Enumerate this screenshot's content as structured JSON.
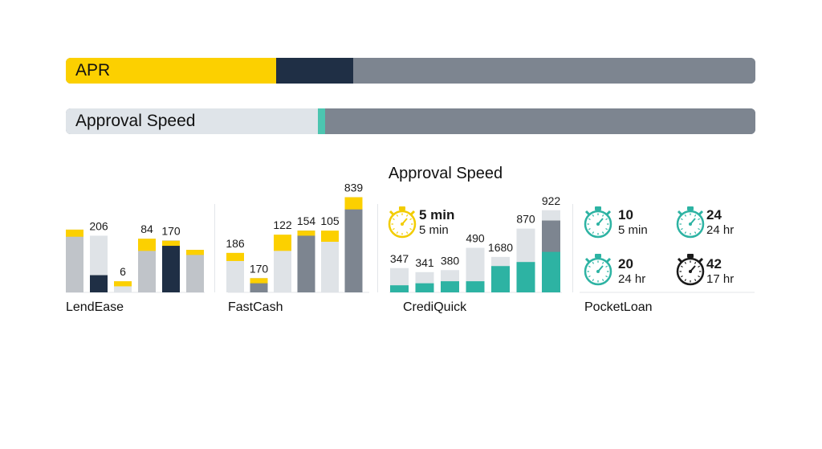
{
  "bars": {
    "apr": {
      "label": "APR",
      "segments": [
        {
          "share": 0.305,
          "color": "#fcd000"
        },
        {
          "share": 0.112,
          "color": "#1f2f45"
        },
        {
          "share": 0.583,
          "color": "#7d8590"
        }
      ]
    },
    "approval_speed": {
      "label": "Approval Speed",
      "segments": [
        {
          "share": 0.365,
          "color": "#dfe4e9"
        },
        {
          "share": 0.011,
          "color": "#4cc5b0"
        },
        {
          "share": 0.624,
          "color": "#7d8590"
        }
      ]
    }
  },
  "chart_data": {
    "type": "bar",
    "title": "Approval Speed",
    "colors": {
      "yellow": "#fcd000",
      "navy": "#1f2f45",
      "gray": "#c0c4c9",
      "lightgray": "#dfe3e7",
      "slate": "#7d8590",
      "teal": "#2db3a3",
      "paleteal": "#b9e6e0"
    },
    "panels": [
      {
        "name": "LendEase",
        "bars": [
          {
            "label": "",
            "total": 0.62,
            "top": 0.07,
            "base": "gray",
            "cap": "yellow"
          },
          {
            "label": "206",
            "total": 0.56,
            "fill": 0.17,
            "base": "lightgray",
            "low": "navy"
          },
          {
            "label": "6",
            "total": 0.11,
            "top": 0.05,
            "base": "lightgray",
            "cap": "yellow"
          },
          {
            "label": "84",
            "total": 0.53,
            "top": 0.12,
            "base": "gray",
            "cap": "yellow"
          },
          {
            "label": "170",
            "total": 0.51,
            "top": 0.05,
            "base": "navy",
            "cap": "yellow"
          },
          {
            "label": "",
            "total": 0.42,
            "top": 0.05,
            "base": "gray",
            "cap": "yellow"
          }
        ]
      },
      {
        "name": "FastCash",
        "bars": [
          {
            "label": "186",
            "total": 0.39,
            "top": 0.08,
            "base": "lightgray",
            "cap": "yellow"
          },
          {
            "label": "170",
            "total": 0.14,
            "top": 0.05,
            "base": "slate",
            "cap": "yellow"
          },
          {
            "label": "122",
            "total": 0.57,
            "top": 0.16,
            "base": "lightgray",
            "cap": "yellow"
          },
          {
            "label": "154",
            "total": 0.61,
            "top": 0.05,
            "base": "slate",
            "cap": "yellow"
          },
          {
            "label": "105",
            "total": 0.61,
            "top": 0.11,
            "base": "lightgray",
            "cap": "yellow"
          },
          {
            "label": "839",
            "total": 0.94,
            "top": 0.12,
            "base": "slate",
            "cap": "yellow"
          }
        ]
      },
      {
        "name": "CrediQuick",
        "bars": [
          {
            "label": "347",
            "total": 0.24,
            "fill": 0.07,
            "base": "lightgray",
            "low": "teal"
          },
          {
            "label": "341",
            "total": 0.2,
            "fill": 0.09,
            "base": "lightgray",
            "low": "teal"
          },
          {
            "label": "380",
            "total": 0.22,
            "fill": 0.11,
            "base": "lightgray",
            "low": "teal"
          },
          {
            "label": "490",
            "total": 0.44,
            "fill": 0.11,
            "base": "lightgray",
            "low": "teal"
          },
          {
            "label": "1680",
            "total": 0.35,
            "fill": 0.26,
            "base": "lightgray",
            "low": "teal"
          },
          {
            "label": "870",
            "total": 0.63,
            "fill": 0.3,
            "base": "lightgray",
            "low": "teal"
          },
          {
            "label": "922",
            "total": 0.81,
            "fill": 0.4,
            "base": "slate",
            "low": "teal",
            "cap": "lightgray"
          }
        ]
      }
    ],
    "timers": [
      {
        "value": "5 min",
        "sub": "5 min",
        "color": "#f2cc00"
      },
      {
        "value": "10",
        "sub": "5 min",
        "color": "#2db3a3"
      },
      {
        "value": "24",
        "sub": "24 hr",
        "color": "#2db3a3"
      },
      {
        "value": "20",
        "sub": "24 hr",
        "color": "#2db3a3"
      },
      {
        "value": "42",
        "sub": "17 hr",
        "color": "#1a1a1a"
      }
    ],
    "pocketloan": "PocketLoan"
  }
}
